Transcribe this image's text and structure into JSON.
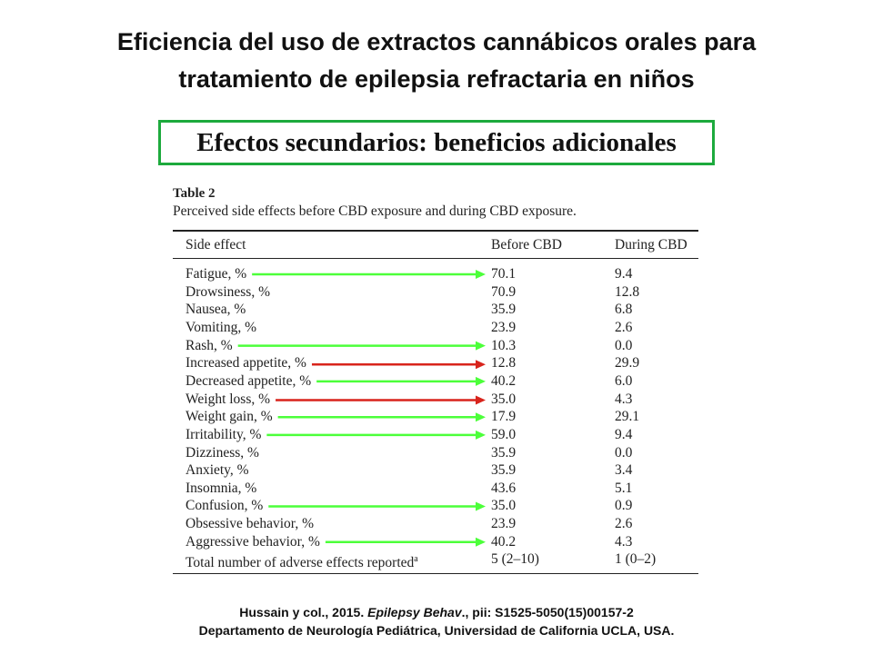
{
  "title": {
    "line1": "Eficiencia del uso de extractos cannábicos orales para",
    "line2": "tratamiento de epilepsia refractaria en niños"
  },
  "subtitle": "Efectos secundarios: beneficios adicionales",
  "table": {
    "label": "Table 2",
    "caption": "Perceived side effects before CBD exposure and during CBD exposure.",
    "columns": [
      "Side effect",
      "Before CBD",
      "During CBD"
    ],
    "rows": [
      {
        "effect": "Fatigue, %",
        "before": "70.1",
        "during": "9.4",
        "arrow": "green"
      },
      {
        "effect": "Drowsiness, %",
        "before": "70.9",
        "during": "12.8",
        "arrow": ""
      },
      {
        "effect": "Nausea, %",
        "before": "35.9",
        "during": "6.8",
        "arrow": ""
      },
      {
        "effect": "Vomiting, %",
        "before": "23.9",
        "during": "2.6",
        "arrow": ""
      },
      {
        "effect": "Rash, %",
        "before": "10.3",
        "during": "0.0",
        "arrow": "green"
      },
      {
        "effect": "Increased appetite, %",
        "before": "12.8",
        "during": "29.9",
        "arrow": "red"
      },
      {
        "effect": "Decreased appetite, %",
        "before": "40.2",
        "during": "6.0",
        "arrow": "green"
      },
      {
        "effect": "Weight loss, %",
        "before": "35.0",
        "during": "4.3",
        "arrow": "red"
      },
      {
        "effect": "Weight gain, %",
        "before": "17.9",
        "during": "29.1",
        "arrow": "green"
      },
      {
        "effect": "Irritability, %",
        "before": "59.0",
        "during": "9.4",
        "arrow": "green"
      },
      {
        "effect": "Dizziness, %",
        "before": "35.9",
        "during": "0.0",
        "arrow": ""
      },
      {
        "effect": "Anxiety, %",
        "before": "35.9",
        "during": "3.4",
        "arrow": ""
      },
      {
        "effect": "Insomnia, %",
        "before": "43.6",
        "during": "5.1",
        "arrow": ""
      },
      {
        "effect": "Confusion, %",
        "before": "35.0",
        "during": "0.9",
        "arrow": "green"
      },
      {
        "effect": "Obsessive behavior, %",
        "before": "23.9",
        "during": "2.6",
        "arrow": ""
      },
      {
        "effect": "Aggressive behavior, %",
        "before": "40.2",
        "during": "4.3",
        "arrow": "green"
      },
      {
        "effect": "Total number of adverse effects reported",
        "effect_sup": "a",
        "before": "5 (2–10)",
        "during": "1 (0–2)",
        "arrow": ""
      }
    ]
  },
  "citation": {
    "line1_authors": "Hussain y col., 2015. ",
    "line1_journal": "Epilepsy Behav",
    "line1_rest": "., pii: S1525-5050(15)00157-2",
    "line2": "Departamento de  Neurología Pediátrica, Universidad de California UCLA, USA."
  },
  "colors": {
    "green_arrow": "#4cff3a",
    "red_arrow": "#d8241c",
    "box_border": "#1daa3d"
  }
}
